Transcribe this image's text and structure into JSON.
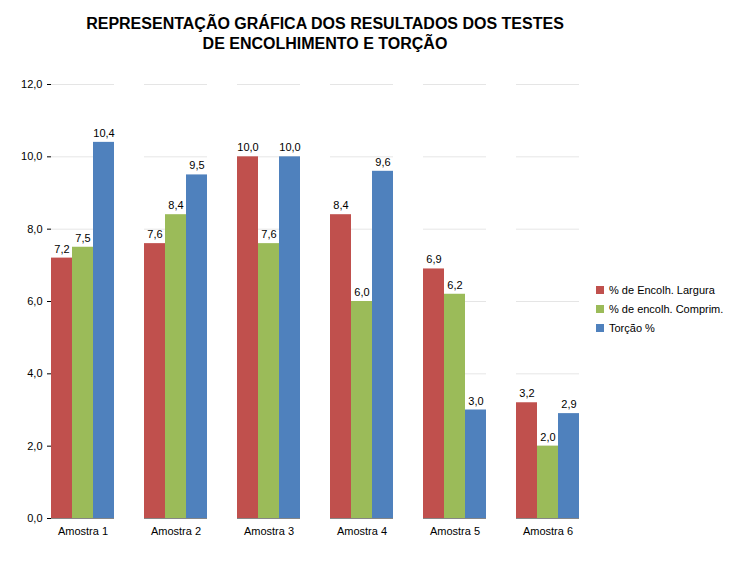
{
  "chart_data": {
    "type": "bar",
    "title": "REPRESENTAÇÃO GRÁFICA DOS RESULTADOS DOS TESTES DE ENCOLHIMENTO E TORÇÃO",
    "categories": [
      "Amostra 1",
      "Amostra 2",
      "Amostra 3",
      "Amostra 4",
      "Amostra 5",
      "Amostra 6"
    ],
    "series": [
      {
        "name": "% de Encolh. Largura",
        "color": "#c0504d",
        "values": [
          7.2,
          7.6,
          10.0,
          8.4,
          6.9,
          3.2
        ],
        "value_labels": [
          "7,2",
          "7,6",
          "10,0",
          "8,4",
          "6,9",
          "3,2"
        ]
      },
      {
        "name": "% de encolh. Comprim.",
        "color": "#9bbb59",
        "values": [
          7.5,
          8.4,
          7.6,
          6.0,
          6.2,
          2.0
        ],
        "value_labels": [
          "7,5",
          "8,4",
          "7,6",
          "6,0",
          "6,2",
          "2,0"
        ]
      },
      {
        "name": "Torção %",
        "color": "#4f81bd",
        "values": [
          10.4,
          9.5,
          10.0,
          9.6,
          3.0,
          2.9
        ],
        "value_labels": [
          "10,4",
          "9,5",
          "10,0",
          "9,6",
          "3,0",
          "2,9"
        ]
      }
    ],
    "ylim": [
      0,
      12
    ],
    "yticks": [
      {
        "value": 0,
        "label": "0,0"
      },
      {
        "value": 2,
        "label": "2,0"
      },
      {
        "value": 4,
        "label": "4,0"
      },
      {
        "value": 6,
        "label": "6,0"
      },
      {
        "value": 8,
        "label": "8,0"
      },
      {
        "value": 10,
        "label": "10,0"
      },
      {
        "value": 12,
        "label": "12,0"
      }
    ],
    "grid": true,
    "legend": "right",
    "data_labels": true
  }
}
